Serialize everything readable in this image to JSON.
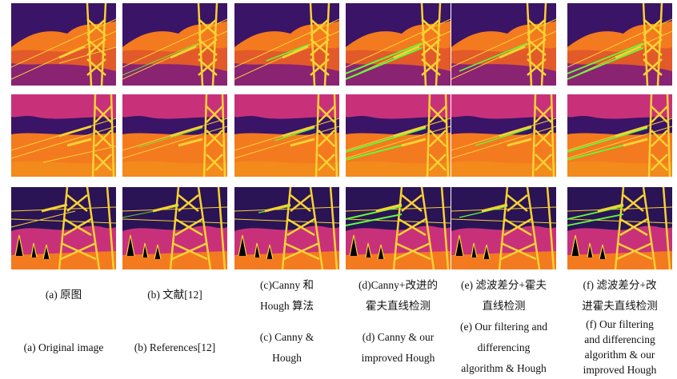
{
  "figure": {
    "columns": [
      {
        "id": "a",
        "caption_cn": [
          "(a) 原图"
        ],
        "caption_en": [
          "(a) Original image"
        ]
      },
      {
        "id": "b",
        "caption_cn": [
          "(b)  文献[12]"
        ],
        "caption_en": [
          "(b) References[12]"
        ]
      },
      {
        "id": "c",
        "caption_cn": [
          "(c)Canny 和",
          "Hough 算法"
        ],
        "caption_en": [
          "(c) Canny &",
          "Hough"
        ]
      },
      {
        "id": "d",
        "caption_cn": [
          "(d)Canny+改进的",
          "霍夫直线检测"
        ],
        "caption_en": [
          "(d) Canny & our",
          "improved Hough"
        ]
      },
      {
        "id": "e",
        "caption_cn": [
          "(e)  滤波差分+霍夫",
          "直线检测"
        ],
        "caption_en": [
          "(e) Our filtering and",
          "differencing",
          "algorithm & Hough"
        ]
      },
      {
        "id": "f",
        "caption_cn": [
          "(f)  滤波差分+改",
          "进霍夫直线检测"
        ],
        "caption_en": [
          "(f) Our filtering",
          "and differencing",
          "algorithm & our",
          "improved Hough"
        ]
      }
    ],
    "rows": [
      {
        "id": "scene-1",
        "description_visible": false
      },
      {
        "id": "scene-2",
        "description_visible": false
      },
      {
        "id": "scene-3",
        "description_visible": false
      }
    ],
    "colors": {
      "thermal_hot": "#f7d233",
      "thermal_warm": "#f47a1f",
      "thermal_mid": "#c8317a",
      "thermal_cool": "#3a1466",
      "detected_line": "#5cff3a"
    }
  }
}
